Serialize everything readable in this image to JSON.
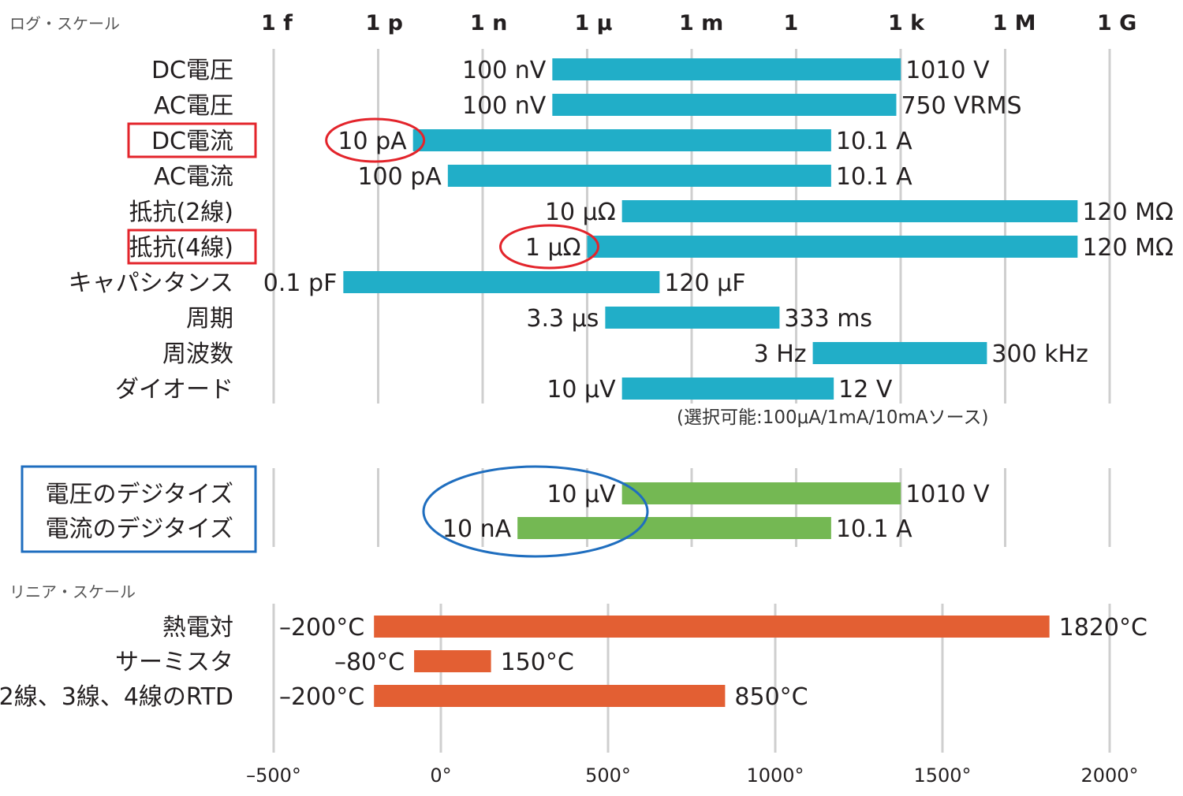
{
  "chart_data": [
    {
      "type": "bar",
      "orientation": "horizontal",
      "scale": "log",
      "scale_label": "ログ・スケール",
      "tick_labels": [
        "1 f",
        "1 p",
        "1 n",
        "1 μ",
        "1 m",
        "1",
        "1 k",
        "1 M",
        "1 G"
      ],
      "tick_exponents": [
        -15,
        -12,
        -9,
        -6,
        -3,
        0,
        3,
        6,
        9
      ],
      "color": "#21aec8",
      "rows": [
        {
          "name": "DC電圧",
          "min_label": "100 nV",
          "max_label": "1010 V",
          "min": 1e-07,
          "max": 1010
        },
        {
          "name": "AC電圧",
          "min_label": "100 nV",
          "max_label": "750 VRMS",
          "min": 1e-07,
          "max": 750
        },
        {
          "name": "DC電流",
          "min_label": "10 pA",
          "max_label": "10.1 A",
          "min": 1e-11,
          "max": 10.1,
          "label_boxed": true,
          "min_circled": true
        },
        {
          "name": "AC電流",
          "min_label": "100 pA",
          "max_label": "10.1 A",
          "min": 1e-10,
          "max": 10.1
        },
        {
          "name": "抵抗(2線)",
          "min_label": "10 μΩ",
          "max_label": "120 MΩ",
          "min": 1e-05,
          "max": 120000000.0
        },
        {
          "name": "抵抗(4線)",
          "min_label": "1 μΩ",
          "max_label": "120 MΩ",
          "min": 1e-06,
          "max": 120000000.0,
          "label_boxed": true,
          "min_circled": true
        },
        {
          "name": "キャパシタンス",
          "min_label": "0.1 pF",
          "max_label": "120 μF",
          "min": 1e-13,
          "max": 0.00012
        },
        {
          "name": "周期",
          "min_label": "3.3 μs",
          "max_label": "333 ms",
          "min": 3.3e-06,
          "max": 0.333
        },
        {
          "name": "周波数",
          "min_label": "3 Hz",
          "max_label": "300 kHz",
          "min": 3,
          "max": 300000
        },
        {
          "name": "ダイオード",
          "min_label": "10 μV",
          "max_label": "12 V",
          "min": 1e-05,
          "max": 12
        }
      ],
      "note": "(選択可能:100μA/1mA/10mAソース)"
    },
    {
      "type": "bar",
      "orientation": "horizontal",
      "scale": "log",
      "color": "#74b853",
      "boxed_labels": [
        "電圧のデジタイズ",
        "電流のデジタイズ"
      ],
      "rows": [
        {
          "name": "電圧のデジタイズ",
          "min_label": "10 μV",
          "max_label": "1010 V",
          "min": 1e-05,
          "max": 1010
        },
        {
          "name": "電流のデジタイズ",
          "min_label": "10 nA",
          "max_label": "10.1 A",
          "min": 1e-08,
          "max": 10.1
        }
      ],
      "min_values_circled": true
    },
    {
      "type": "bar",
      "orientation": "horizontal",
      "scale": "linear",
      "scale_label": "リニア・スケール",
      "xlim": [
        -500,
        2000
      ],
      "ticks": [
        -500,
        0,
        500,
        1000,
        1500,
        2000
      ],
      "tick_labels": [
        "–500°",
        "0°",
        "500°",
        "1000°",
        "1500°",
        "2000°"
      ],
      "color": "#e35f33",
      "rows": [
        {
          "name": "熱電対",
          "min_label": "–200°C",
          "max_label": "1820°C",
          "min": -200,
          "max": 1820
        },
        {
          "name": "サーミスタ",
          "min_label": "–80°C",
          "max_label": "150°C",
          "min": -80,
          "max": 150
        },
        {
          "name": "2線、3線、4線のRTD",
          "min_label": "–200°C",
          "max_label": "850°C",
          "min": -200,
          "max": 850
        }
      ]
    }
  ]
}
